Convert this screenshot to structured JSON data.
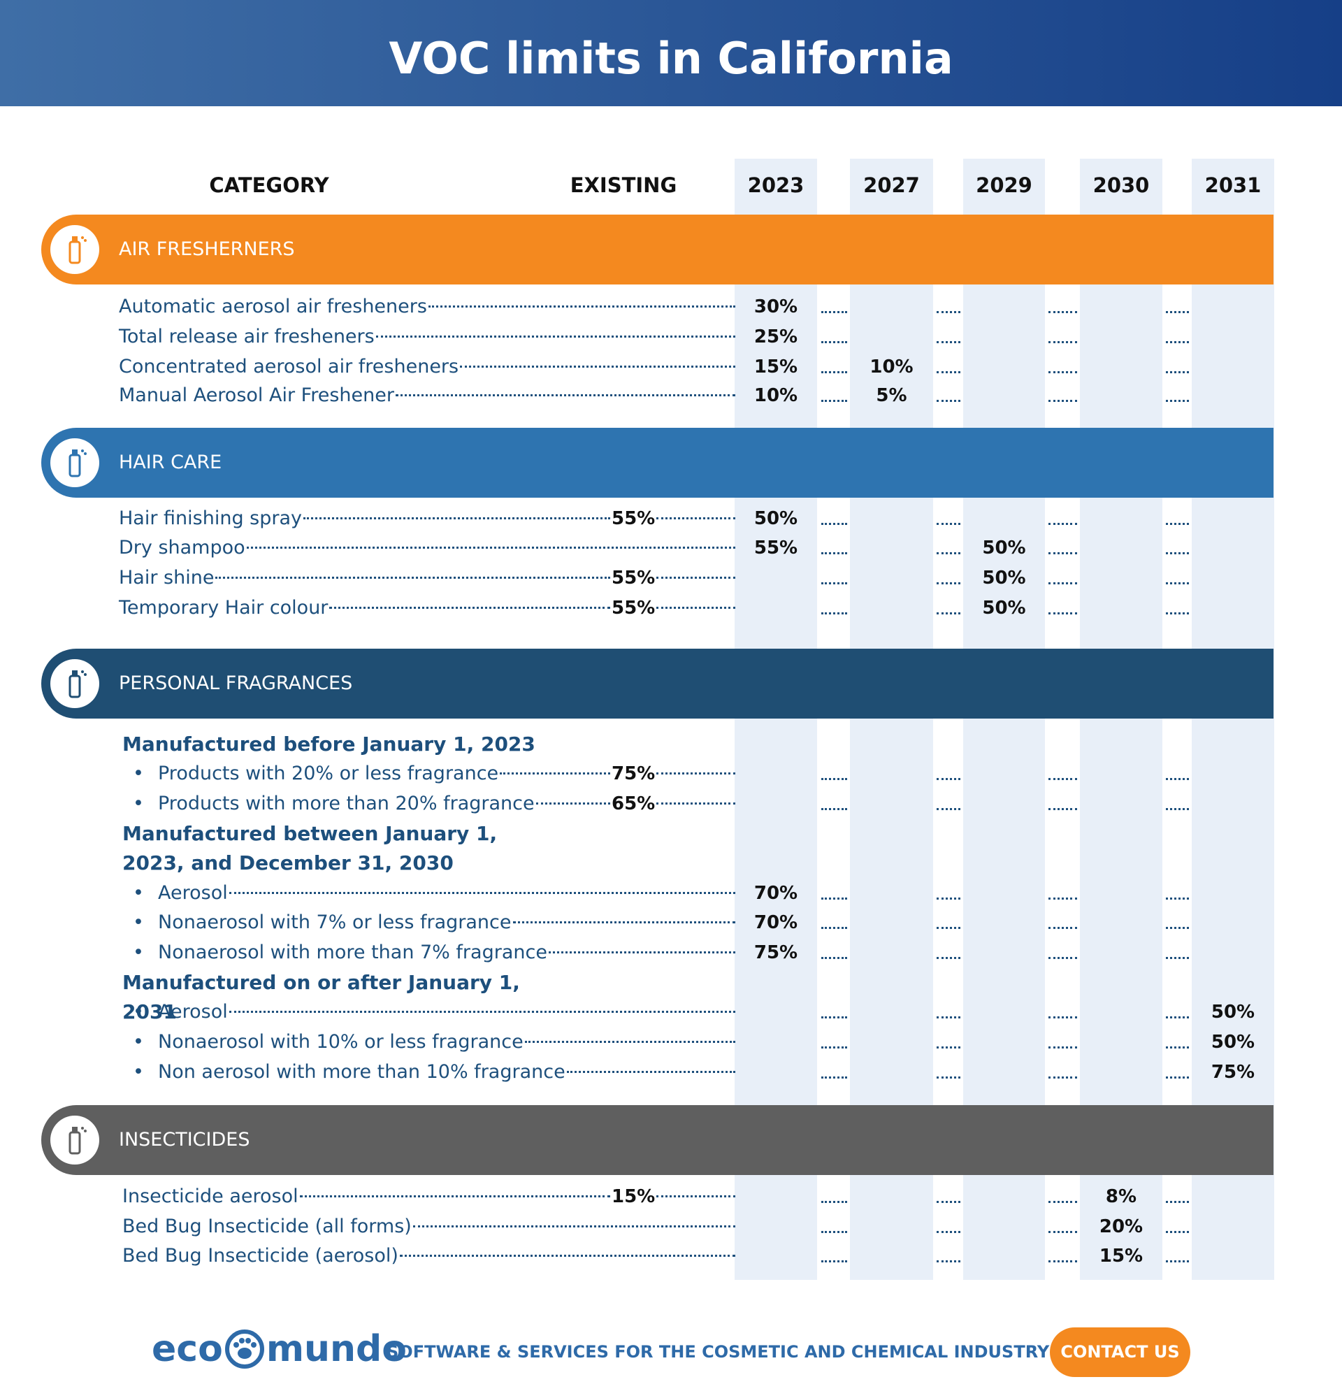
{
  "header": {
    "title": "VOC limits in California"
  },
  "table": {
    "columns": [
      "CATEGORY",
      "EXISTING",
      "2023",
      "2027",
      "2029",
      "2030",
      "2031"
    ],
    "sections": [
      {
        "title": "AIR FRESHERNERS",
        "items": [
          {
            "label": "Automatic aerosol air fresheners",
            "cells": [
              null,
              "30%",
              null,
              null,
              null,
              null
            ]
          },
          {
            "label": "Total release air fresheners",
            "cells": [
              null,
              "25%",
              null,
              null,
              null,
              null
            ]
          },
          {
            "label": "Concentrated aerosol air fresheners",
            "cells": [
              null,
              "15%",
              "10%",
              null,
              null,
              null
            ]
          },
          {
            "label": "Manual Aerosol Air Freshener",
            "cells": [
              null,
              "10%",
              "5%",
              null,
              null,
              null
            ]
          }
        ]
      },
      {
        "title": "HAIR CARE",
        "items": [
          {
            "label": "Hair finishing spray",
            "cells": [
              "55%",
              "50%",
              null,
              null,
              null,
              null
            ]
          },
          {
            "label": "Dry shampoo",
            "cells": [
              null,
              "55%",
              null,
              "50%",
              null,
              null
            ]
          },
          {
            "label": "Hair shine",
            "cells": [
              "55%",
              null,
              null,
              "50%",
              null,
              null
            ]
          },
          {
            "label": "Temporary Hair colour",
            "cells": [
              "55%",
              null,
              null,
              "50%",
              null,
              null
            ]
          }
        ]
      },
      {
        "title": "PERSONAL FRAGRANCES",
        "items": [
          {
            "heading": "Manufactured before January 1, 2023"
          },
          {
            "label": "Products with 20% or less fragrance",
            "bullet": true,
            "cells": [
              "75%",
              null,
              null,
              null,
              null,
              null
            ]
          },
          {
            "label": "Products with more than 20% fragrance",
            "bullet": true,
            "cells": [
              "65%",
              null,
              null,
              null,
              null,
              null
            ]
          },
          {
            "heading": "Manufactured between January 1, 2023, and December 31, 2030"
          },
          {
            "label": "Aerosol",
            "bullet": true,
            "cells": [
              null,
              "70%",
              null,
              null,
              null,
              null
            ]
          },
          {
            "label": "Nonaerosol with 7% or less fragrance",
            "bullet": true,
            "cells": [
              null,
              "70%",
              null,
              null,
              null,
              null
            ]
          },
          {
            "label": "Nonaerosol with more than 7% fragrance",
            "bullet": true,
            "cells": [
              null,
              "75%",
              null,
              null,
              null,
              null
            ]
          },
          {
            "heading": "Manufactured on or after January 1, 2031"
          },
          {
            "label": "Aerosol",
            "bullet": true,
            "cells": [
              null,
              null,
              null,
              null,
              null,
              "50%"
            ]
          },
          {
            "label": "Nonaerosol with 10% or less fragrance",
            "bullet": true,
            "cells": [
              null,
              null,
              null,
              null,
              null,
              "50%"
            ]
          },
          {
            "label": "Non aerosol with more than 10% fragrance",
            "bullet": true,
            "cells": [
              null,
              null,
              null,
              null,
              null,
              "75%"
            ]
          }
        ]
      },
      {
        "title": "INSECTICIDES",
        "items": [
          {
            "label": "Insecticide aerosol",
            "cells": [
              "15%",
              null,
              null,
              null,
              "8%",
              null
            ]
          },
          {
            "label": "Bed Bug Insecticide (all forms)",
            "cells": [
              null,
              null,
              null,
              null,
              "20%",
              null
            ]
          },
          {
            "label": "Bed Bug Insecticide (aerosol)",
            "cells": [
              null,
              null,
              null,
              null,
              "15%",
              null
            ]
          }
        ]
      }
    ]
  },
  "footer": {
    "logo_left": "eco",
    "logo_right": "mundo",
    "tagline": "SOFTWARE & SERVICES FOR THE COSMETIC AND CHEMICAL INDUSTRY",
    "button": "CONTACT US"
  }
}
